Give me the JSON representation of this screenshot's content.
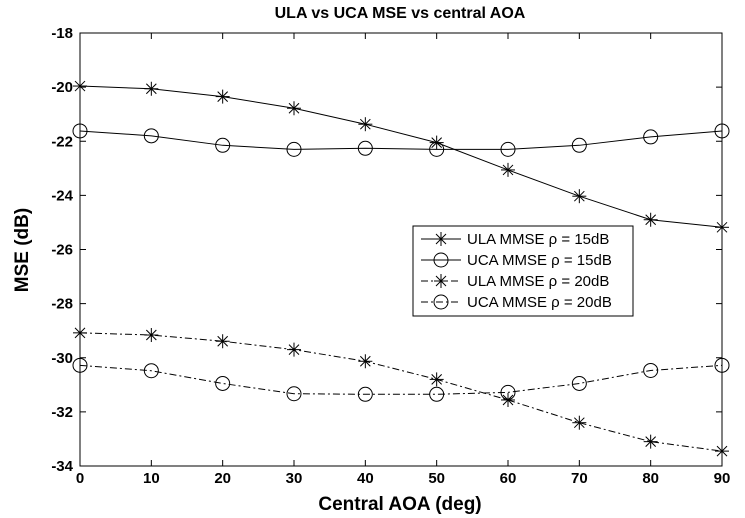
{
  "chart_data": {
    "type": "line",
    "title": "ULA vs UCA MSE vs central AOA",
    "xlabel": "Central AOA (deg)",
    "ylabel": "MSE (dB)",
    "xlim": [
      0,
      90
    ],
    "ylim": [
      -34,
      -18
    ],
    "xticks": [
      0,
      10,
      20,
      30,
      40,
      50,
      60,
      70,
      80,
      90
    ],
    "yticks": [
      -34,
      -32,
      -30,
      -28,
      -26,
      -24,
      -22,
      -20,
      -18
    ],
    "grid": false,
    "legend_position": "center-right",
    "x": [
      0,
      10,
      20,
      30,
      40,
      50,
      60,
      70,
      80,
      90
    ],
    "series": [
      {
        "name": "ULA MMSE ρ = 15dB",
        "marker": "asterisk",
        "linestyle": "solid",
        "color": "#000000",
        "values": [
          -19.96,
          -20.06,
          -20.35,
          -20.78,
          -21.37,
          -22.05,
          -23.06,
          -24.03,
          -24.9,
          -25.18
        ]
      },
      {
        "name": "UCA MMSE ρ = 15dB",
        "marker": "circle",
        "linestyle": "solid",
        "color": "#000000",
        "values": [
          -21.62,
          -21.8,
          -22.15,
          -22.3,
          -22.26,
          -22.3,
          -22.3,
          -22.15,
          -21.84,
          -21.62
        ]
      },
      {
        "name": "ULA MMSE ρ = 20dB",
        "marker": "asterisk",
        "linestyle": "dashdot",
        "color": "#000000",
        "values": [
          -29.08,
          -29.16,
          -29.39,
          -29.7,
          -30.13,
          -30.8,
          -31.56,
          -32.4,
          -33.1,
          -33.45
        ]
      },
      {
        "name": "UCA MMSE ρ = 20dB",
        "marker": "circle",
        "linestyle": "dashdot",
        "color": "#000000",
        "values": [
          -30.28,
          -30.48,
          -30.95,
          -31.33,
          -31.35,
          -31.35,
          -31.28,
          -30.95,
          -30.47,
          -30.28
        ]
      }
    ]
  }
}
